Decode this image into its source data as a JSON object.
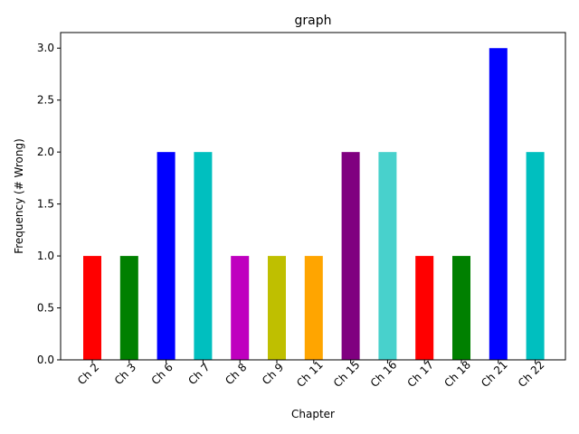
{
  "chart_data": {
    "type": "bar",
    "title": "graph",
    "xlabel": "Chapter",
    "ylabel": "Frequency (# Wrong)",
    "categories": [
      "Ch 2",
      "Ch 3",
      "Ch 6",
      "Ch 7",
      "Ch 8",
      "Ch 9",
      "Ch 11",
      "Ch 15",
      "Ch 16",
      "Ch 17",
      "Ch 18",
      "Ch 21",
      "Ch 22"
    ],
    "values": [
      1,
      1,
      2,
      2,
      1,
      1,
      1,
      2,
      2,
      1,
      1,
      3,
      2
    ],
    "colors": [
      "#ff0000",
      "#008000",
      "#0000ff",
      "#00bfbf",
      "#bf00bf",
      "#bfbf00",
      "#ffa500",
      "#800080",
      "#48d1cc",
      "#ff0000",
      "#008000",
      "#0000ff",
      "#00bfbf"
    ],
    "ylim": [
      0,
      3.15
    ],
    "yticks": [
      "0.0",
      "0.5",
      "1.0",
      "1.5",
      "2.0",
      "2.5",
      "3.0"
    ],
    "ytick_values": [
      0,
      0.5,
      1.0,
      1.5,
      2.0,
      2.5,
      3.0
    ],
    "grid": false,
    "legend": "none"
  }
}
